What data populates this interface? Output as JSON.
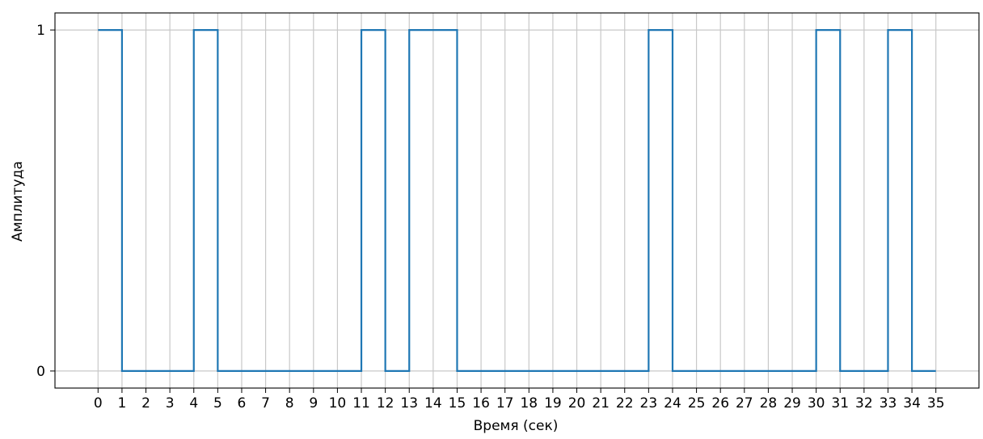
{
  "chart_data": {
    "type": "line",
    "title": "",
    "xlabel": "Время (сек)",
    "ylabel": "Амплитуда",
    "step": "post",
    "x_ticks": [
      0,
      1,
      2,
      3,
      4,
      5,
      6,
      7,
      8,
      9,
      10,
      11,
      12,
      13,
      14,
      15,
      16,
      17,
      18,
      19,
      20,
      21,
      22,
      23,
      24,
      25,
      26,
      27,
      28,
      29,
      30,
      31,
      32,
      33,
      34,
      35
    ],
    "y_ticks": [
      0,
      1
    ],
    "xlim": [
      -1.8,
      36.8
    ],
    "ylim": [
      -0.05,
      1.05
    ],
    "grid": true,
    "series": [
      {
        "x": [
          0,
          1,
          2,
          3,
          4,
          5,
          6,
          7,
          8,
          9,
          10,
          11,
          12,
          13,
          14,
          15,
          16,
          17,
          18,
          19,
          20,
          21,
          22,
          23,
          24,
          25,
          26,
          27,
          28,
          29,
          30,
          31,
          32,
          33,
          34,
          35
        ],
        "values": [
          1,
          0,
          0,
          0,
          1,
          0,
          0,
          0,
          0,
          0,
          0,
          1,
          0,
          1,
          1,
          0,
          0,
          0,
          0,
          0,
          0,
          0,
          0,
          1,
          0,
          0,
          0,
          0,
          0,
          0,
          1,
          0,
          0,
          1,
          0,
          0
        ],
        "color": "#1f77b4"
      }
    ]
  }
}
